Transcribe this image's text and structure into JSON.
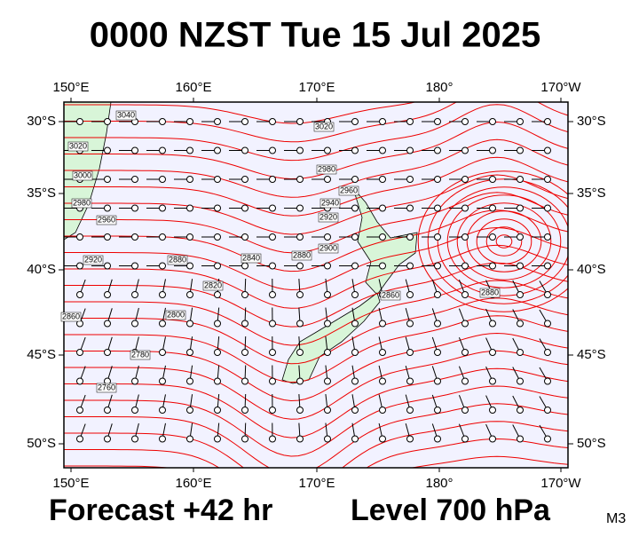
{
  "header": {
    "title": "0000 NZST Tue 15 Jul 2025"
  },
  "map": {
    "lon_labels": [
      "150°E",
      "160°E",
      "170°E",
      "180°",
      "170°W"
    ],
    "lat_labels": [
      "30°S",
      "35°S",
      "40°S",
      "45°S",
      "50°S"
    ],
    "contour_labels": [
      "3040",
      "3020",
      "3020",
      "3000",
      "2980",
      "2960",
      "2980",
      "2960",
      "2940",
      "2920",
      "2900",
      "2920",
      "2880",
      "2880",
      "2840",
      "2860",
      "2820",
      "2800",
      "2780",
      "2760",
      "2860",
      "2880"
    ]
  },
  "footer": {
    "forecast": "Forecast +42 hr",
    "level": "Level 700 hPa",
    "code": "M3"
  }
}
